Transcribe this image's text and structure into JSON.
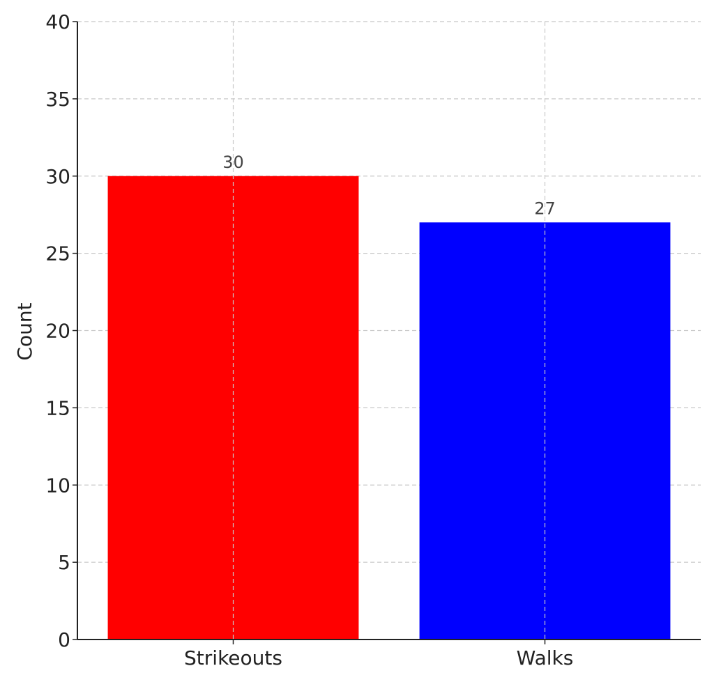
{
  "chart_data": {
    "type": "bar",
    "categories": [
      "Strikeouts",
      "Walks"
    ],
    "values": [
      30,
      27
    ],
    "colors": [
      "#ff0000",
      "#0000ff"
    ],
    "data_labels": [
      "30",
      "27"
    ],
    "ylabel": "Count",
    "xlabel": "",
    "title": "",
    "ylim": [
      0,
      40
    ],
    "yticks": [
      0,
      5,
      10,
      15,
      20,
      25,
      30,
      35,
      40
    ],
    "grid": true
  }
}
